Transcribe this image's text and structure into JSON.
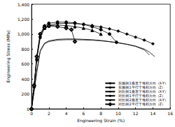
{
  "chart_data": {
    "type": "line",
    "x_label": "Engineering Strain (%)",
    "y_label": "Engineering Stress (MPa)",
    "xlim": [
      0,
      16
    ],
    "xticks": [
      0,
      2,
      4,
      6,
      8,
      10,
      12,
      14,
      16
    ],
    "ylim": [
      0,
      1400
    ],
    "yticks": [
      0,
      200,
      400,
      600,
      800,
      1000,
      1200,
      1400
    ],
    "grid": false,
    "legend": "lower right",
    "series": [
      {
        "name": "实施例1垂直于堆积方向（X-Y）",
        "color": "#000000",
        "marker": "none",
        "line_style": "solid",
        "x": [
          0,
          0.3,
          0.6,
          1,
          1.5,
          2,
          3,
          4,
          5,
          6,
          7,
          8,
          9,
          10,
          11,
          12,
          13,
          13.6,
          14.2
        ],
        "values": [
          0,
          250,
          500,
          780,
          880,
          910,
          930,
          935,
          935,
          930,
          925,
          915,
          900,
          885,
          865,
          840,
          800,
          760,
          700
        ]
      },
      {
        "name": "实施例1平行于堆积方向（Z）",
        "color": "#000000",
        "marker": "none",
        "line_style": "solid",
        "x": [
          0,
          0.3,
          0.6,
          1,
          1.5,
          2,
          3,
          4,
          5,
          6,
          7,
          8,
          9,
          10,
          11,
          12,
          13,
          13.6
        ],
        "values": [
          0,
          240,
          490,
          770,
          870,
          900,
          920,
          925,
          925,
          922,
          918,
          910,
          898,
          882,
          862,
          835,
          790,
          720
        ]
      },
      {
        "name": "对比例1垂直于堆积方向（X-Y）",
        "color": "#000000",
        "marker": "diamond",
        "line_style": "solid",
        "x": [
          0,
          0.3,
          0.6,
          1,
          1.5,
          2,
          3,
          4,
          5,
          6,
          7,
          8,
          9,
          10,
          11,
          12,
          13,
          14
        ],
        "values": [
          0,
          300,
          650,
          950,
          1080,
          1120,
          1140,
          1145,
          1140,
          1130,
          1115,
          1095,
          1070,
          1040,
          1000,
          960,
          920,
          870
        ]
      },
      {
        "name": "对比例1平行于堆积方向（Z）",
        "color": "#000000",
        "marker": "circle",
        "line_style": "solid",
        "x": [
          0,
          0.3,
          0.6,
          1,
          1.5,
          2,
          3,
          4,
          5,
          6,
          7,
          8,
          9,
          9.8
        ],
        "values": [
          0,
          320,
          700,
          1000,
          1110,
          1145,
          1160,
          1160,
          1150,
          1130,
          1100,
          1060,
          1000,
          890
        ]
      },
      {
        "name": "对比例2垂直于堆积方向（X-Y）",
        "color": "#000000",
        "marker": "triangle",
        "line_style": "solid",
        "x": [
          0,
          0.3,
          0.6,
          1,
          1.5,
          2,
          3,
          4,
          5,
          6,
          7,
          8
        ],
        "values": [
          0,
          300,
          680,
          980,
          1080,
          1110,
          1120,
          1115,
          1100,
          1080,
          1050,
          1000
        ]
      },
      {
        "name": "对比例2平行于堆积方向（Z）",
        "color": "#000000",
        "marker": "emptyDiamond",
        "line_style": "solid",
        "x": [
          0,
          0.3,
          0.6,
          1,
          1.5,
          2,
          3,
          4,
          4.6,
          5
        ],
        "values": [
          0,
          310,
          700,
          1000,
          1090,
          1110,
          1100,
          1080,
          1060,
          900
        ]
      }
    ]
  }
}
